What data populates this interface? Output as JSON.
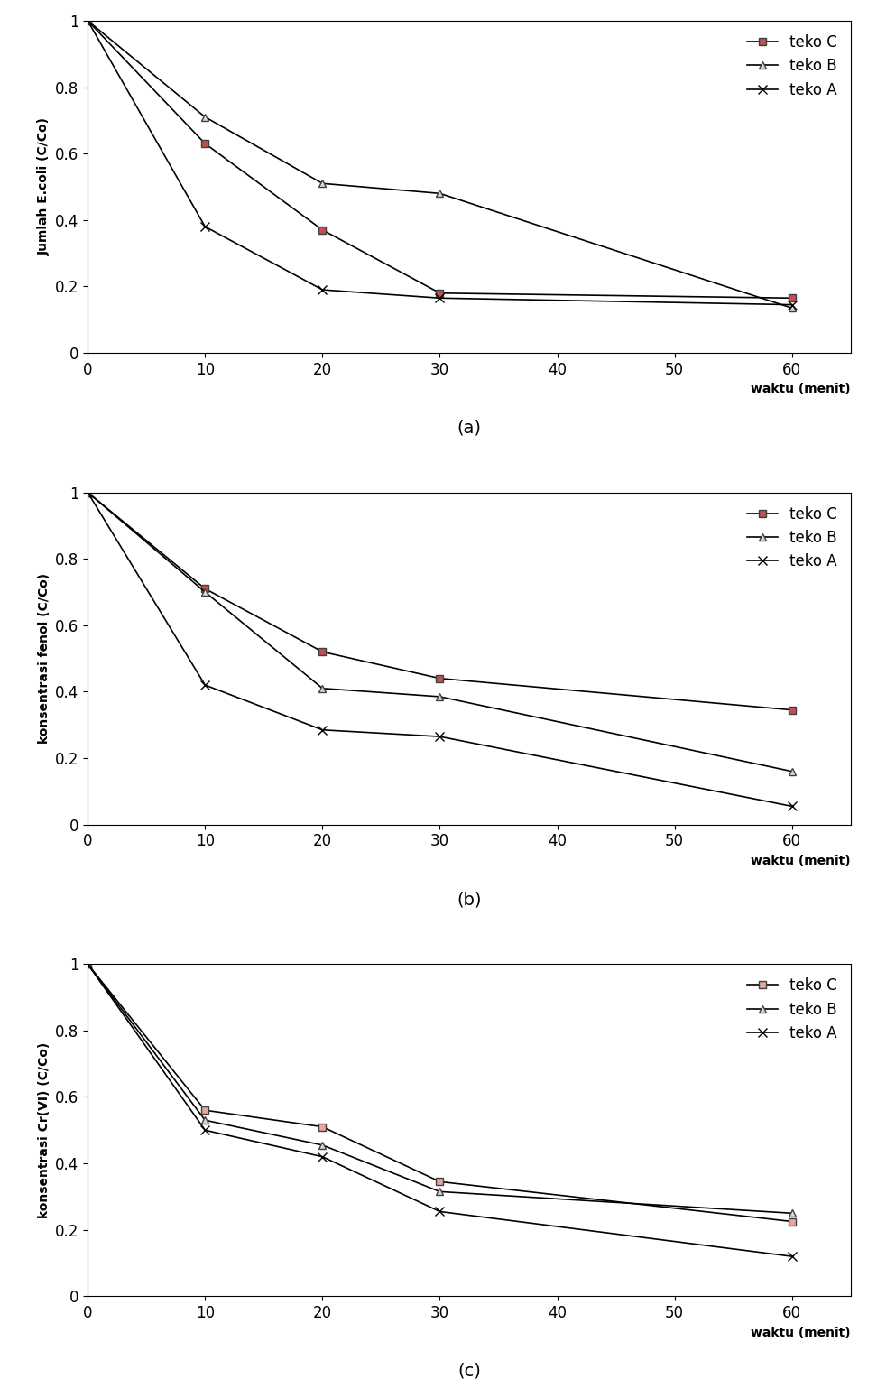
{
  "chart_data": [
    {
      "type": "line",
      "caption": "(a)",
      "x_label": "waktu (menit)",
      "y_label": "Jumlah E.coli (C/Co)",
      "x": [
        0,
        10,
        20,
        30,
        60
      ],
      "series": [
        {
          "name": "teko C",
          "color": "#c0504d",
          "marker": "square",
          "values": [
            1,
            0.63,
            0.37,
            0.18,
            0.165
          ]
        },
        {
          "name": "teko B",
          "color": "#d9d9d9",
          "marker": "triangle",
          "values": [
            1,
            0.71,
            0.51,
            0.48,
            0.135
          ]
        },
        {
          "name": "teko A",
          "color": "#000000",
          "marker": "x",
          "values": [
            1,
            0.38,
            0.19,
            0.165,
            0.145
          ]
        }
      ],
      "xlim": [
        0,
        65
      ],
      "ylim": [
        0,
        1
      ],
      "xticks": [
        0,
        10,
        20,
        30,
        40,
        50,
        60
      ],
      "yticks": [
        0,
        0.2,
        0.4,
        0.6,
        0.8,
        1
      ],
      "legend": "upper right"
    },
    {
      "type": "line",
      "caption": "(b)",
      "x_label": "waktu (menit)",
      "y_label": "konsentrasi fenol (C/Co)",
      "x": [
        0,
        10,
        20,
        30,
        60
      ],
      "series": [
        {
          "name": "teko C",
          "color": "#c0504d",
          "marker": "square",
          "values": [
            1,
            0.71,
            0.52,
            0.44,
            0.345
          ]
        },
        {
          "name": "teko B",
          "color": "#d9d9d9",
          "marker": "triangle",
          "values": [
            1,
            0.7,
            0.41,
            0.385,
            0.16
          ]
        },
        {
          "name": "teko A",
          "color": "#000000",
          "marker": "x",
          "values": [
            1,
            0.42,
            0.285,
            0.265,
            0.055
          ]
        }
      ],
      "xlim": [
        0,
        65
      ],
      "ylim": [
        0,
        1
      ],
      "xticks": [
        0,
        10,
        20,
        30,
        40,
        50,
        60
      ],
      "yticks": [
        0,
        0.2,
        0.4,
        0.6,
        0.8,
        1
      ],
      "legend": "upper right"
    },
    {
      "type": "line",
      "caption": "(c)",
      "x_label": "waktu (menit)",
      "y_label": "konsentrasi Cr(VI) (C/Co)",
      "x": [
        0,
        10,
        20,
        30,
        60
      ],
      "series": [
        {
          "name": "teko C",
          "color": "#e6a6a4",
          "marker": "square",
          "values": [
            1,
            0.56,
            0.51,
            0.345,
            0.225
          ]
        },
        {
          "name": "teko B",
          "color": "#d9d9d9",
          "marker": "triangle",
          "values": [
            1,
            0.53,
            0.455,
            0.315,
            0.25
          ]
        },
        {
          "name": "teko A",
          "color": "#000000",
          "marker": "x",
          "values": [
            1,
            0.5,
            0.42,
            0.255,
            0.12
          ]
        }
      ],
      "xlim": [
        0,
        65
      ],
      "ylim": [
        0,
        1
      ],
      "xticks": [
        0,
        10,
        20,
        30,
        40,
        50,
        60
      ],
      "yticks": [
        0,
        0.2,
        0.4,
        0.6,
        0.8,
        1
      ],
      "legend": "upper right"
    }
  ]
}
